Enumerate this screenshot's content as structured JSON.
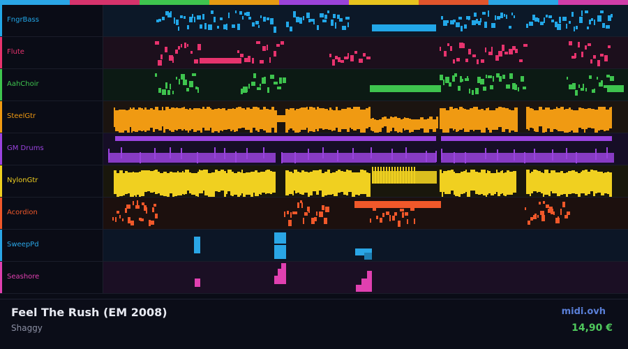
{
  "top_bar_colors": [
    "#2aa6e6",
    "#d6336c",
    "#3ec44e",
    "#e69a12",
    "#9b43d9",
    "#e8c31e",
    "#e0552c",
    "#2aa6e6",
    "#d03da9"
  ],
  "tracks": [
    {
      "name": "FngrBass",
      "color": "#22a7e8",
      "bg": "#0c1828",
      "pattern": "bass"
    },
    {
      "name": "Flute",
      "color": "#e8336e",
      "bg": "#1c0f1c",
      "pattern": "flute"
    },
    {
      "name": "AahChoir",
      "color": "#3ec44e",
      "bg": "#0c1a14",
      "pattern": "choir"
    },
    {
      "name": "SteelGtr",
      "color": "#f09a12",
      "bg": "#1b1410",
      "pattern": "steel"
    },
    {
      "name": "GM Drums",
      "color": "#9b43e0",
      "bg": "#160e26",
      "pattern": "drums"
    },
    {
      "name": "NylonGtr",
      "color": "#f0d020",
      "bg": "#19170c",
      "pattern": "nylon"
    },
    {
      "name": "Acordion",
      "color": "#f0582a",
      "bg": "#1c100e",
      "pattern": "accordion"
    },
    {
      "name": "SweepPd",
      "color": "#2aa6e6",
      "bg": "#0c1626",
      "pattern": "sweep"
    },
    {
      "name": "Seashore",
      "color": "#e040b0",
      "bg": "#1b0f24",
      "pattern": "seashore"
    }
  ],
  "footer": {
    "title": "Feel The Rush (EM 2008)",
    "artist": "Shaggy",
    "site": "midi.ovh",
    "price": "14,90 €"
  }
}
